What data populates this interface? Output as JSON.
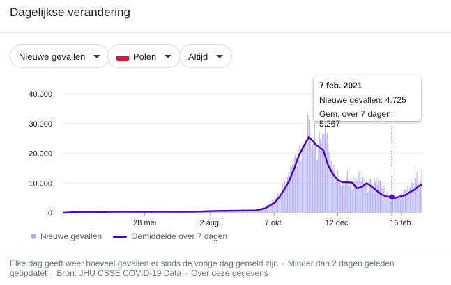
{
  "header": {
    "title": "Dagelijkse verandering"
  },
  "filters": {
    "metric": "Nieuwe gevallen",
    "country": "Polen",
    "period": "Altijd"
  },
  "colors": {
    "bar": "#b3b0f2",
    "line": "#4c07cb",
    "grid": "#e8eaed",
    "flag_white": "#ffffff",
    "flag_red": "#dc143c"
  },
  "tooltip": {
    "date": "7 feb. 2021",
    "cases": "Nieuwe gevallen: 4.725",
    "avg": "Gem. over 7 dagen: 5.267"
  },
  "legend": {
    "bars": "Nieuwe gevallen",
    "line": "Gemiddelde over 7 dagen"
  },
  "footer": {
    "text1": "Elke dag geeft weer hoeveel gevallen er sinds de vorige dag gemeld zijn",
    "sep": "·",
    "text2": "Minder dan 2 dagen geleden geüpdatet",
    "source_label": "Bron:",
    "source_link": "JHU CSSE COVID-19 Data",
    "about_link": "Over deze gegevens"
  },
  "chart_data": {
    "type": "bar",
    "y_ticks": [
      "40.000",
      "30.000",
      "20.000",
      "10.000",
      "0"
    ],
    "x_ticks": [
      "28 mei",
      "2 aug.",
      "7 okt.",
      "12 dec.",
      "16 feb."
    ],
    "x_tick_days": [
      85,
      153,
      219,
      285,
      351
    ],
    "ylim": [
      0,
      40000
    ],
    "x_days_range": [
      0,
      372
    ],
    "day0": "2020-03-03",
    "grid": true,
    "selected_day": 341,
    "series": [
      {
        "name": "Nieuwe gevallen",
        "kind": "bars",
        "daily_sample_days": [
          0,
          20,
          40,
          60,
          80,
          100,
          120,
          140,
          160,
          180,
          200,
          210,
          220,
          230,
          235,
          240,
          245,
          250,
          255,
          260,
          265,
          268,
          272,
          276,
          280,
          285,
          290,
          295,
          300,
          305,
          310,
          315,
          320,
          325,
          330,
          335,
          340,
          345,
          350,
          355,
          360,
          365,
          370,
          372
        ],
        "daily_sample_values": [
          0,
          400,
          350,
          400,
          350,
          400,
          350,
          400,
          600,
          800,
          1000,
          1800,
          4500,
          9000,
          13000,
          17000,
          21000,
          25000,
          27000,
          25000,
          22000,
          22000,
          33000,
          20000,
          14000,
          12000,
          10000,
          13000,
          9000,
          12000,
          14000,
          8000,
          10000,
          11000,
          9000,
          7000,
          4725,
          5500,
          6000,
          7500,
          9000,
          12000,
          11000,
          12000
        ]
      },
      {
        "name": "Gemiddelde over 7 dagen",
        "kind": "line",
        "x_days": [
          0,
          20,
          40,
          60,
          80,
          100,
          120,
          140,
          160,
          180,
          200,
          210,
          220,
          225,
          230,
          235,
          240,
          245,
          250,
          255,
          258,
          262,
          266,
          270,
          275,
          280,
          285,
          290,
          295,
          300,
          305,
          310,
          315,
          320,
          325,
          330,
          335,
          340,
          345,
          350,
          355,
          360,
          365,
          368,
          372
        ],
        "values": [
          0,
          350,
          300,
          380,
          350,
          380,
          360,
          420,
          600,
          700,
          800,
          1500,
          3500,
          5500,
          8000,
          11000,
          15000,
          19500,
          22500,
          25500,
          24500,
          23000,
          22000,
          21000,
          16000,
          13000,
          11000,
          10300,
          10300,
          10100,
          8200,
          8700,
          10000,
          8800,
          7500,
          6200,
          5500,
          5267,
          5000,
          5500,
          5900,
          7000,
          7800,
          8800,
          9500
        ]
      }
    ]
  }
}
